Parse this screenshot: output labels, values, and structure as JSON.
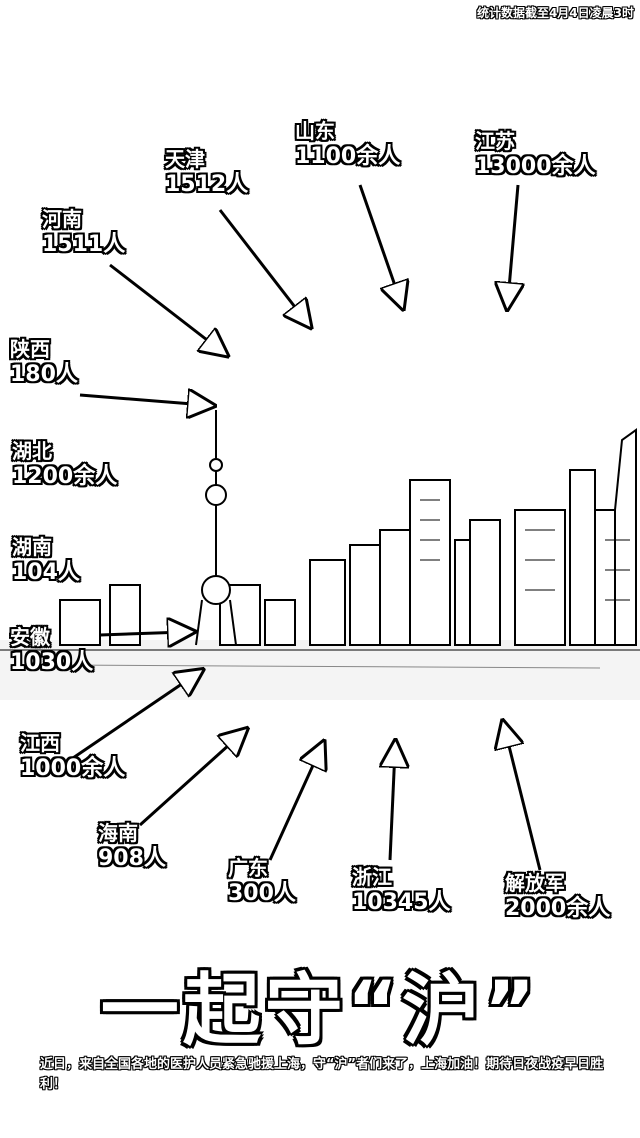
{
  "note": "统计数据截至4月4日凌晨3时",
  "labels": [
    {
      "key": "jiangsu",
      "region": "江苏",
      "count": "13000余人"
    },
    {
      "key": "shandong",
      "region": "山东",
      "count": "1100余人"
    },
    {
      "key": "tianjin",
      "region": "天津",
      "count": "1512人"
    },
    {
      "key": "henan",
      "region": "河南",
      "count": "1511人"
    },
    {
      "key": "shaanxi",
      "region": "陕西",
      "count": "180人"
    },
    {
      "key": "hubei",
      "region": "湖北",
      "count": "1200余人"
    },
    {
      "key": "hunan",
      "region": "湖南",
      "count": "104人"
    },
    {
      "key": "anhui",
      "region": "安徽",
      "count": "1030人"
    },
    {
      "key": "jiangxi",
      "region": "江西",
      "count": "1000余人"
    },
    {
      "key": "hainan",
      "region": "海南",
      "count": "908人"
    },
    {
      "key": "guangdong",
      "region": "广东",
      "count": "300人"
    },
    {
      "key": "zhejiang",
      "region": "浙江",
      "count": "10345人"
    },
    {
      "key": "pla",
      "region": "解放军",
      "count": "2000余人"
    }
  ],
  "title": "一起守“沪”",
  "caption": "近日，来自全国各地的医护人员紧急驰援上海，守“沪”者们来了，上海加油！期待日夜战疫早日胜利！"
}
